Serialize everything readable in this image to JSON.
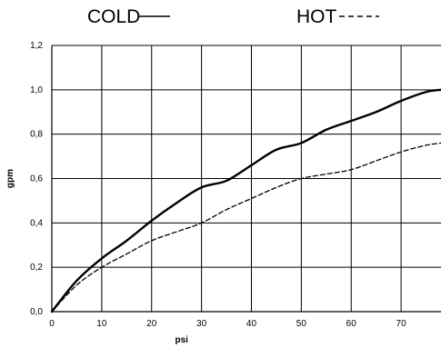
{
  "chart_data": {
    "type": "line",
    "xlabel": "psi",
    "ylabel": "gpm",
    "xlim": [
      0,
      78
    ],
    "ylim": [
      0,
      1.2
    ],
    "x_ticks": [
      "0",
      "10",
      "20",
      "30",
      "40",
      "50",
      "60",
      "70"
    ],
    "y_ticks": [
      "0,0",
      "0,2",
      "0,4",
      "0,6",
      "0,8",
      "1,0",
      "1,2"
    ],
    "grid": true,
    "legend": {
      "placement": "top",
      "entries": [
        "COLD",
        "HOT"
      ]
    },
    "series": [
      {
        "name": "COLD",
        "style": "solid",
        "color": "#000000",
        "x": [
          0,
          5,
          10,
          15,
          20,
          25,
          30,
          35,
          40,
          45,
          50,
          55,
          60,
          65,
          70,
          75,
          78
        ],
        "y": [
          0.0,
          0.14,
          0.24,
          0.32,
          0.41,
          0.49,
          0.56,
          0.59,
          0.66,
          0.73,
          0.76,
          0.82,
          0.86,
          0.9,
          0.95,
          0.99,
          1.0
        ]
      },
      {
        "name": "HOT",
        "style": "dashed",
        "color": "#000000",
        "x": [
          0,
          5,
          10,
          15,
          20,
          25,
          30,
          35,
          40,
          45,
          50,
          55,
          60,
          65,
          70,
          75,
          78
        ],
        "y": [
          0.0,
          0.12,
          0.2,
          0.26,
          0.32,
          0.36,
          0.4,
          0.46,
          0.51,
          0.56,
          0.6,
          0.62,
          0.64,
          0.68,
          0.72,
          0.75,
          0.76
        ]
      }
    ]
  }
}
